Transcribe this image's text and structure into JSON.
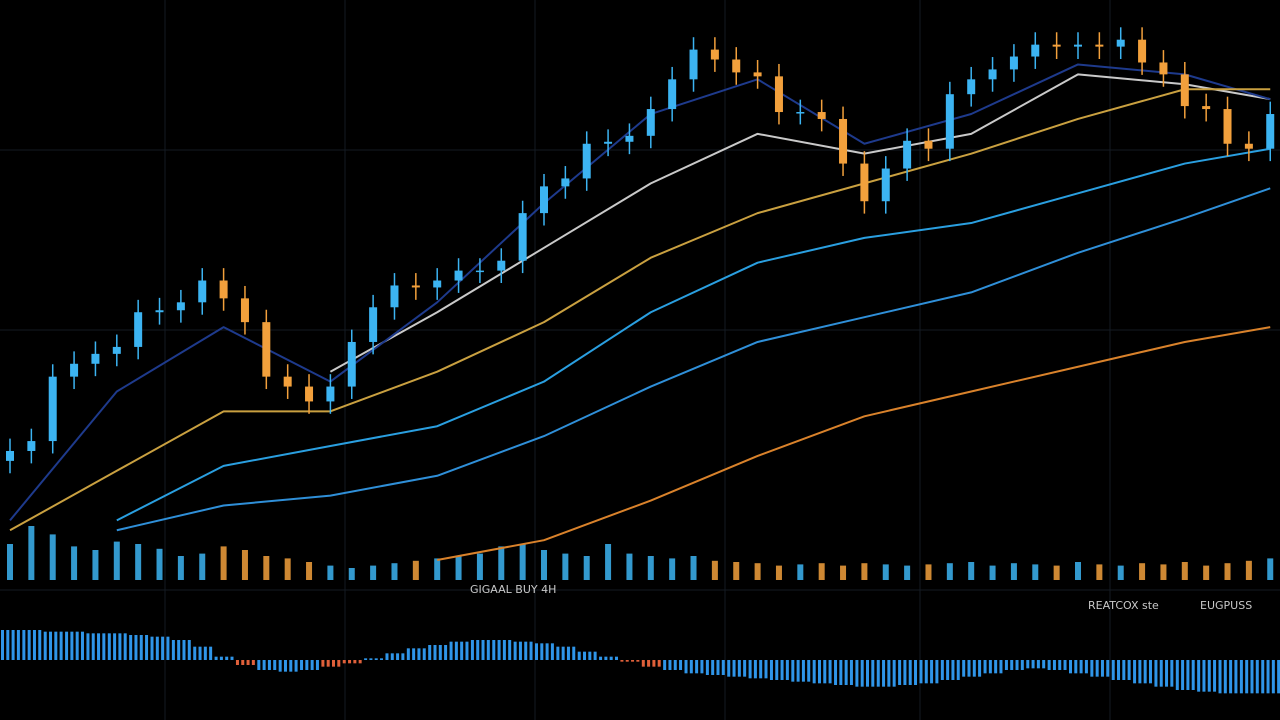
{
  "chart_data": {
    "type": "candlestick",
    "ylim": [
      0,
      112
    ],
    "up_color": "#3cb4f2",
    "down_color": "#f2a03c",
    "open": [
      20,
      22,
      24,
      37,
      39.6,
      41.6,
      43,
      50,
      50.4,
      52,
      56.4,
      52.8,
      48,
      37,
      35,
      32,
      35,
      44,
      51,
      55.4,
      55,
      56.4,
      58.4,
      58.4,
      60.4,
      70,
      75.4,
      77,
      84,
      84.4,
      85.6,
      91,
      97,
      103,
      101,
      98.4,
      97.6,
      90.4,
      90.4,
      89,
      80,
      72.4,
      79,
      84.6,
      83,
      94,
      97,
      99,
      101.6,
      104,
      103.6,
      104,
      103.6,
      105,
      100.4,
      98,
      91.6,
      91,
      84,
      83
    ],
    "high": [
      24.5,
      26.5,
      39.5,
      42.1,
      44.1,
      45.5,
      52.5,
      52.9,
      54.5,
      58.9,
      58.9,
      55.3,
      50.5,
      39.5,
      37.5,
      37.5,
      46.5,
      53.5,
      57.9,
      57.9,
      58.9,
      60.9,
      60.9,
      62.9,
      72.5,
      77.9,
      79.5,
      86.5,
      86.9,
      88.1,
      93.5,
      99.5,
      105.5,
      105.5,
      103.5,
      100.9,
      100.1,
      92.9,
      92.9,
      91.5,
      82.5,
      81.5,
      87.1,
      87.1,
      96.5,
      99.5,
      101.5,
      104.1,
      106.5,
      106.5,
      106.5,
      106.5,
      107.5,
      107.5,
      102.9,
      100.5,
      94.1,
      93.5,
      86.5,
      92.5
    ],
    "low": [
      17.5,
      19.5,
      21.5,
      34.5,
      37.1,
      39.1,
      40.5,
      47.5,
      47.9,
      49.5,
      50.3,
      45.5,
      34.5,
      32.5,
      29.5,
      29.5,
      32.5,
      41.5,
      48.5,
      52.5,
      52.5,
      53.9,
      55.9,
      55.9,
      57.9,
      67.5,
      72.9,
      74.5,
      81.5,
      81.9,
      83.1,
      88.5,
      94.5,
      98.5,
      95.9,
      95.1,
      87.9,
      87.9,
      86.5,
      77.5,
      69.9,
      69.9,
      76.5,
      80.5,
      80.5,
      91.5,
      94.5,
      96.5,
      99.1,
      101.1,
      101.1,
      101.1,
      101.1,
      97.9,
      95.5,
      89.1,
      88.5,
      81.5,
      80.5,
      80.5
    ],
    "close": [
      22,
      24,
      37,
      39.6,
      41.6,
      43,
      50,
      50.4,
      52,
      56.4,
      52.8,
      48,
      37,
      35,
      32,
      35,
      44,
      51,
      55.4,
      55,
      56.4,
      58.4,
      58.4,
      60.4,
      70,
      75.4,
      77,
      84,
      84.4,
      85.6,
      91,
      97,
      103,
      101,
      98.4,
      97.6,
      90.4,
      90.4,
      89,
      80,
      72.4,
      79,
      84.6,
      83,
      94,
      97,
      99,
      101.6,
      104,
      103.6,
      104,
      103.6,
      105,
      100.4,
      98,
      91.6,
      91,
      84,
      83,
      90
    ],
    "lines": {
      "x": [
        0,
        5,
        10,
        15,
        20,
        25,
        30,
        35,
        40,
        45,
        50,
        55,
        59
      ],
      "series": [
        {
          "color": "#c9c9c9",
          "values": [
            null,
            null,
            null,
            38,
            50,
            63,
            76,
            86,
            82,
            86,
            98,
            96,
            93
          ]
        },
        {
          "color": "#1e3a8c",
          "values": [
            8,
            34,
            47,
            36,
            52,
            72,
            90,
            97,
            84,
            90,
            100,
            98,
            93
          ]
        },
        {
          "color": "#c9a040",
          "values": [
            6,
            18,
            30,
            30,
            38,
            48,
            61,
            70,
            76,
            82,
            89,
            95,
            95
          ]
        },
        {
          "color": "#2a9fe0",
          "values": [
            null,
            8,
            19,
            23,
            27,
            36,
            50,
            60,
            65,
            68,
            74,
            80,
            83
          ]
        },
        {
          "color": "#2f8fd8",
          "values": [
            null,
            6,
            11,
            13,
            17,
            25,
            35,
            44,
            49,
            54,
            62,
            69,
            75
          ]
        },
        {
          "color": "#d9822b",
          "values": [
            null,
            null,
            null,
            null,
            0,
            4,
            12,
            21,
            29,
            34,
            39,
            44,
            47
          ]
        }
      ]
    },
    "volume": {
      "ylim": [
        0,
        50
      ],
      "values": [
        30,
        45,
        38,
        28,
        25,
        32,
        30,
        26,
        20,
        22,
        28,
        25,
        20,
        18,
        15,
        12,
        10,
        12,
        14,
        16,
        18,
        20,
        22,
        28,
        30,
        25,
        22,
        20,
        30,
        22,
        20,
        18,
        20,
        16,
        15,
        14,
        12,
        13,
        14,
        12,
        14,
        13,
        12,
        13,
        14,
        15,
        12,
        14,
        13,
        12,
        15,
        13,
        12,
        14,
        13,
        15,
        12,
        14,
        16,
        18
      ]
    },
    "macd": {
      "ylim": [
        -30,
        30
      ],
      "values": [
        18,
        18,
        17,
        17,
        16,
        16,
        15,
        14,
        12,
        8,
        2,
        -3,
        -6,
        -7,
        -6,
        -4,
        -2,
        1,
        4,
        7,
        9,
        11,
        12,
        12,
        11,
        10,
        8,
        5,
        2,
        -1,
        -4,
        -6,
        -8,
        -9,
        -10,
        -11,
        -12,
        -13,
        -14,
        -15,
        -16,
        -16,
        -15,
        -14,
        -12,
        -10,
        -8,
        -6,
        -5,
        -6,
        -8,
        -10,
        -12,
        -14,
        -16,
        -18,
        -19,
        -20,
        -20,
        -20
      ]
    },
    "annotations": [
      "GIGAAL BUY 4H",
      "REATCOX ste",
      "EUGPUSS"
    ]
  }
}
